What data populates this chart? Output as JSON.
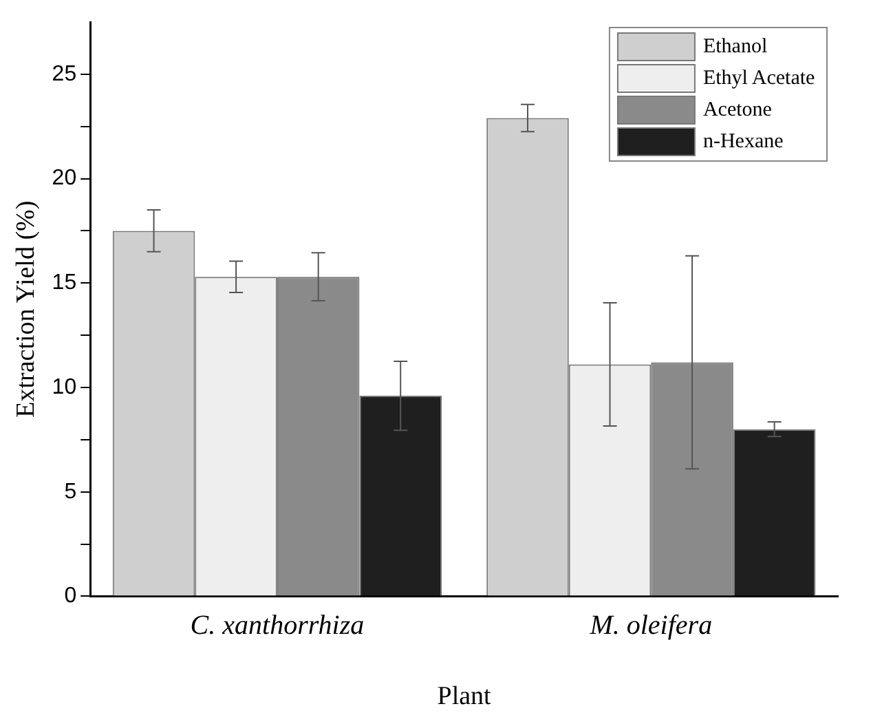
{
  "chart_data": {
    "type": "bar",
    "xlabel": "Plant",
    "ylabel": "Extraction Yield (%)",
    "categories": [
      "C. xanthorrhiza",
      "M. oleifera"
    ],
    "series": [
      {
        "name": "Ethanol",
        "color": "#cfcfcf",
        "values": [
          17.5,
          22.9
        ],
        "errors": [
          1.0,
          0.65
        ]
      },
      {
        "name": "Ethyl Acetate",
        "color": "#eeeeee",
        "values": [
          15.3,
          11.1
        ],
        "errors": [
          0.75,
          2.95
        ]
      },
      {
        "name": "Acetone",
        "color": "#8a8a8a",
        "values": [
          15.3,
          11.2
        ],
        "errors": [
          1.15,
          5.1
        ]
      },
      {
        "name": "n-Hexane",
        "color": "#1f1f1f",
        "values": [
          9.6,
          8.0
        ],
        "errors": [
          1.65,
          0.35
        ]
      }
    ],
    "ylim": [
      0,
      27.5
    ],
    "yticks": [
      0,
      {
        "value": 2.5,
        "label": null
      },
      5,
      {
        "value": 7.5,
        "label": null
      },
      10,
      {
        "value": 12.5,
        "label": null
      },
      15,
      {
        "value": 17.5,
        "label": null
      },
      20,
      {
        "value": 22.5,
        "label": null
      },
      25
    ],
    "grid": false,
    "legend": "top right"
  }
}
